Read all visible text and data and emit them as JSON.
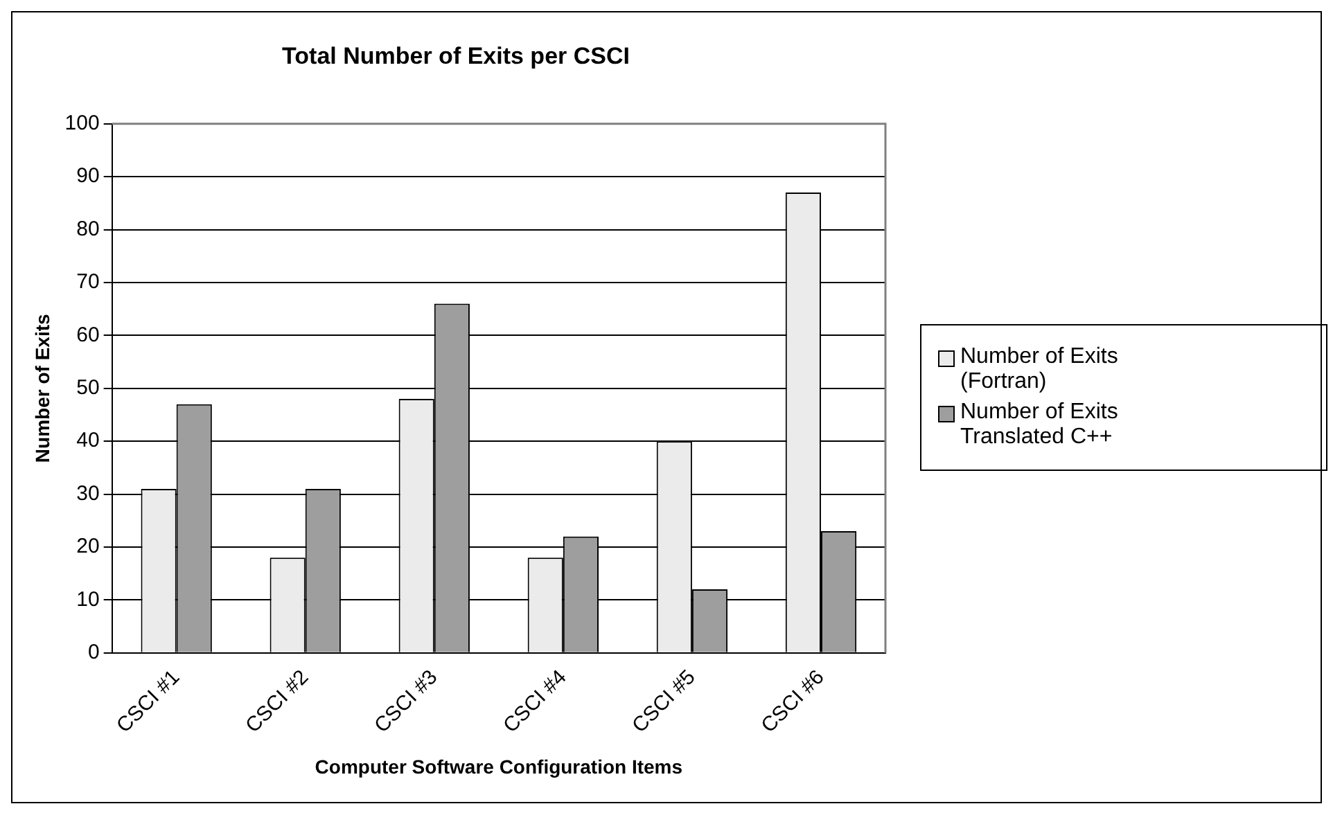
{
  "chart_data": {
    "type": "bar",
    "title": "Total Number of Exits per CSCI",
    "xlabel": "Computer Software Configuration Items",
    "ylabel": "Number of Exits",
    "categories": [
      "CSCI #1",
      "CSCI #2",
      "CSCI #3",
      "CSCI #4",
      "CSCI #5",
      "CSCI #6"
    ],
    "series": [
      {
        "name": "Number of Exits (Fortran)",
        "color": "#ebebeb",
        "values": [
          31,
          18,
          48,
          18,
          40,
          87
        ]
      },
      {
        "name": "Number of Exits Translated C++",
        "color": "#9e9e9e",
        "values": [
          47,
          31,
          66,
          22,
          12,
          23
        ]
      }
    ],
    "ylim": [
      0,
      100
    ],
    "yticks": [
      0,
      10,
      20,
      30,
      40,
      50,
      60,
      70,
      80,
      90,
      100
    ],
    "grid": "y",
    "legend": "right"
  }
}
